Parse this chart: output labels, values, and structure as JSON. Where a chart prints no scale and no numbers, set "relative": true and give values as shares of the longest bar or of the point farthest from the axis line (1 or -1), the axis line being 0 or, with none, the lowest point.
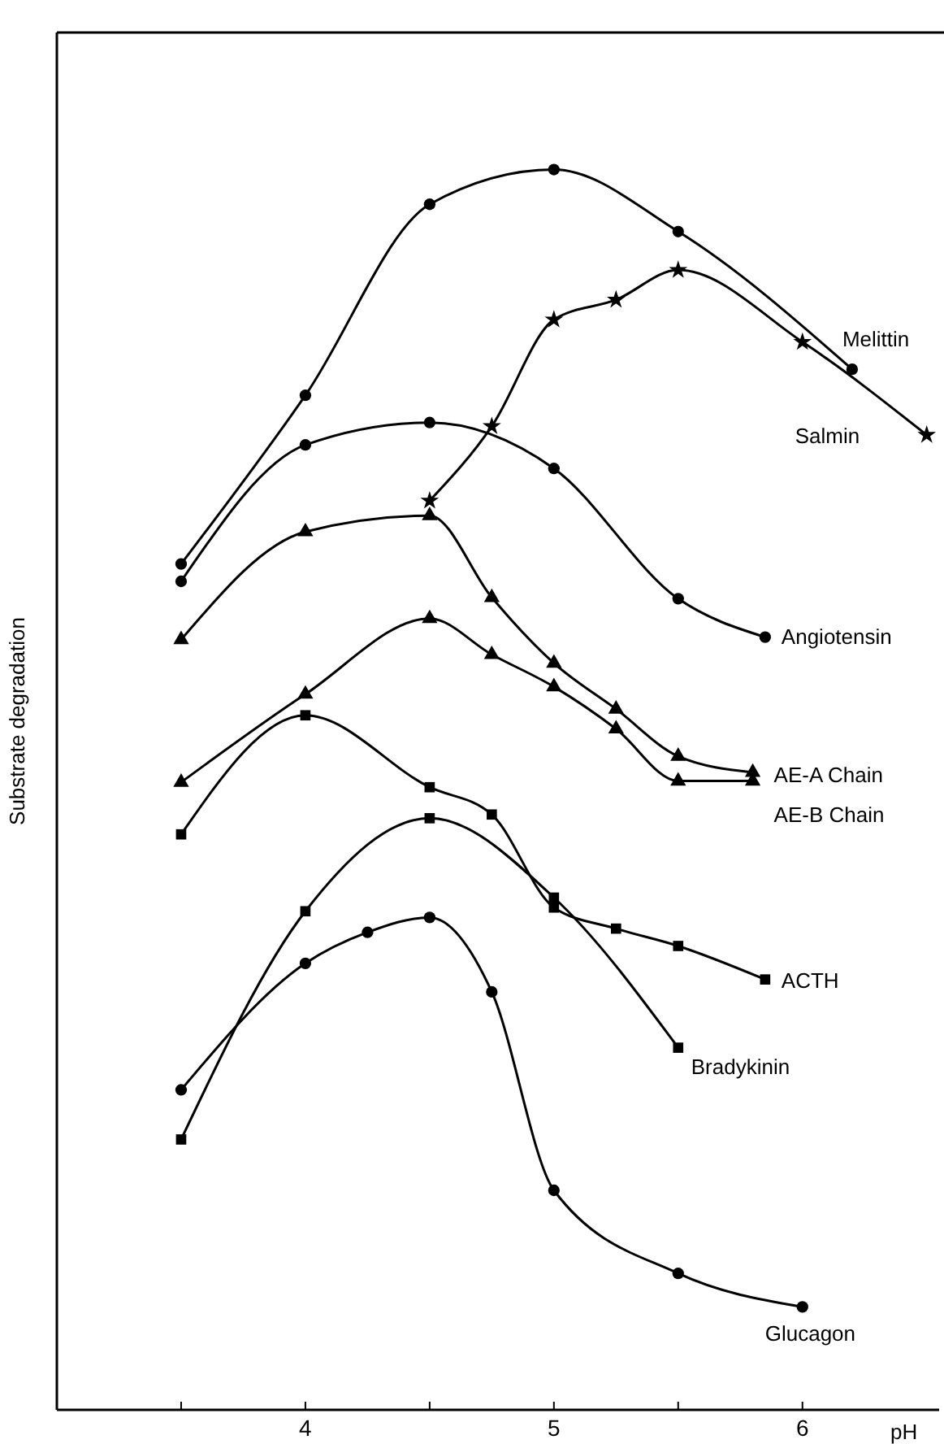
{
  "chart_data": {
    "type": "line",
    "relative": true,
    "xlabel": "pH",
    "ylabel": "Substrate degradation",
    "xlim": [
      3.0,
      6.55
    ],
    "xticks": [
      {
        "value": 3.5,
        "label": null
      },
      4,
      {
        "value": 4.5,
        "label": null
      },
      5,
      {
        "value": 5.5,
        "label": null
      },
      6
    ],
    "grid": false,
    "line_style": "solid",
    "tick_labels": "x",
    "series": [
      {
        "name": "Melittin",
        "color": "#000000",
        "marker": "circle",
        "x": [
          3.5,
          4,
          4.5,
          5,
          5.5,
          6.2
        ],
        "values": [
          0.682,
          0.818,
          0.972,
          1.0,
          0.95,
          0.839
        ]
      },
      {
        "name": "Salmin",
        "color": "#000000",
        "marker": "star",
        "x": [
          4.5,
          4.75,
          5,
          5.25,
          5.5,
          6,
          6.5
        ],
        "values": [
          0.733,
          0.793,
          0.879,
          0.895,
          0.919,
          0.861,
          0.786
        ]
      },
      {
        "name": "Angiotensin",
        "color": "#000000",
        "marker": "circle",
        "x": [
          3.5,
          4,
          4.5,
          5,
          5.5,
          5.85
        ],
        "values": [
          0.668,
          0.778,
          0.796,
          0.759,
          0.654,
          0.623
        ]
      },
      {
        "name": "AE-A Chain",
        "color": "#000000",
        "marker": "triangle",
        "x": [
          3.5,
          4,
          4.5,
          4.75,
          5,
          5.25,
          5.5,
          5.8
        ],
        "values": [
          0.621,
          0.708,
          0.721,
          0.655,
          0.602,
          0.565,
          0.527,
          0.514
        ]
      },
      {
        "name": "AE-B Chain",
        "color": "#000000",
        "marker": "triangle",
        "x": [
          3.5,
          4,
          4.5,
          4.75,
          5,
          5.25,
          5.5,
          5.8
        ],
        "values": [
          0.506,
          0.577,
          0.638,
          0.609,
          0.583,
          0.549,
          0.507,
          0.507
        ]
      },
      {
        "name": "ACTH",
        "color": "#000000",
        "marker": "square",
        "x": [
          3.5,
          4,
          4.5,
          4.75,
          5,
          5.25,
          5.5,
          5.85
        ],
        "values": [
          0.464,
          0.56,
          0.502,
          0.48,
          0.405,
          0.388,
          0.374,
          0.347
        ]
      },
      {
        "name": "Bradykinin",
        "color": "#000000",
        "marker": "square",
        "x": [
          3.5,
          4,
          4.5,
          5,
          5.5
        ],
        "values": [
          0.218,
          0.402,
          0.477,
          0.413,
          0.292
        ]
      },
      {
        "name": "Glucagon",
        "color": "#000000",
        "marker": "circle",
        "x": [
          3.5,
          4,
          4.25,
          4.5,
          4.75,
          5,
          5.5,
          6
        ],
        "values": [
          0.258,
          0.36,
          0.385,
          0.397,
          0.337,
          0.177,
          0.11,
          0.083
        ]
      }
    ]
  }
}
